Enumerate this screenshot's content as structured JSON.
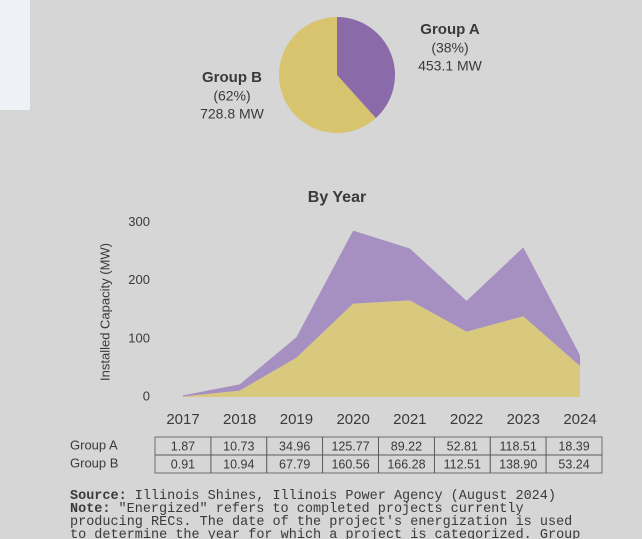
{
  "chart_data": [
    {
      "type": "pie",
      "categories": [
        "Group A",
        "Group B"
      ],
      "values": [
        453.1,
        728.8
      ],
      "value_labels": [
        "453.1 MW",
        "728.8 MW"
      ],
      "percent_labels": [
        "(38%)",
        "(62%)"
      ],
      "colors": [
        "#8a6aa9",
        "#d8c46e"
      ]
    },
    {
      "type": "area",
      "stacked": true,
      "title": "By Year",
      "y_label": "Installed Capacity (MW)",
      "categories": [
        "2017",
        "2018",
        "2019",
        "2020",
        "2021",
        "2022",
        "2023",
        "2024"
      ],
      "series": [
        {
          "name": "Group A",
          "color": "#a68fc1",
          "values": [
            1.87,
            10.73,
            34.96,
            125.77,
            89.22,
            52.81,
            118.51,
            18.39
          ],
          "value_labels": [
            "1.87",
            "10.73",
            "34.96",
            "125.77",
            "89.22",
            "52.81",
            "118.51",
            "18.39"
          ]
        },
        {
          "name": "Group B",
          "color": "#d8c97f",
          "values": [
            0.91,
            10.94,
            67.79,
            160.56,
            166.28,
            112.51,
            138.9,
            53.24
          ],
          "value_labels": [
            "0.91",
            "10.94",
            "67.79",
            "160.56",
            "166.28",
            "112.51",
            "138.90",
            "53.24"
          ]
        }
      ],
      "ylim": [
        0,
        320
      ],
      "yticks": [
        0,
        100,
        200,
        300
      ],
      "grid": false,
      "source": {
        "label": "Source:",
        "text": "Illinois Shines, Illinois Power Agency (August 2024)"
      },
      "note": {
        "label": "Note:",
        "lines": [
          "\"Energized\" refers to completed projects currently",
          "producing RECs. The date of the project's energization is used",
          "to determine the year for which a project is categorized. Group"
        ]
      }
    }
  ]
}
